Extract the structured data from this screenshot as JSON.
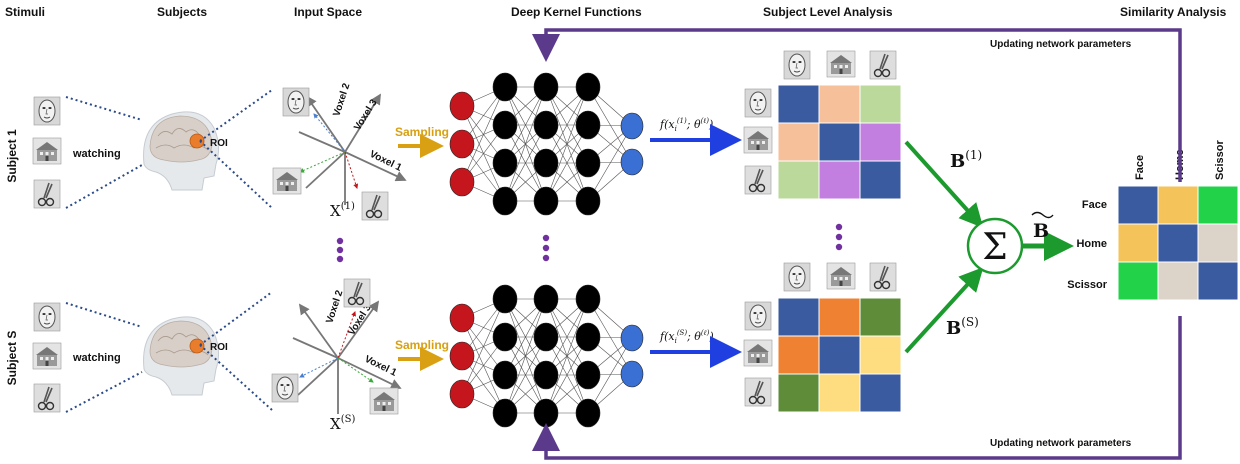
{
  "headers": {
    "stimuli": "Stimuli",
    "subjects": "Subjects",
    "input_space": "Input Space",
    "deep_kernel": "Deep Kernel Functions",
    "subject_level": "Subject Level Analysis",
    "similarity": "Similarity Analysis"
  },
  "rows": {
    "subject1": "Subject 1",
    "subjectS": "Subject S"
  },
  "watching": "watching",
  "roi": "ROI",
  "axes": {
    "voxel1": "Voxel 1",
    "voxel2": "Voxel 2",
    "voxel3": "Voxel 3"
  },
  "sampling": "Sampling",
  "x1": {
    "base": "X",
    "sup": "(1)"
  },
  "xS": {
    "base": "X",
    "sup": "(S)"
  },
  "f1": {
    "prefix": "f(x",
    "sub": "i",
    "sup": "(1)",
    "suffix": "; θ",
    "theta_sup": "(ℓ)",
    "close": ")"
  },
  "fS": {
    "prefix": "f(x",
    "sub": "i",
    "sup": "(S)",
    "suffix": "; θ",
    "theta_sup": "(ℓ)",
    "close": ")"
  },
  "b1": {
    "base": "B",
    "sup": "(1)"
  },
  "bS": {
    "base": "B",
    "sup": "(S)"
  },
  "btilde": "B",
  "sigma": "Σ",
  "updating": "Updating network parameters",
  "similarity_matrix": {
    "columns": [
      "Face",
      "Home",
      "Scissor"
    ],
    "rows": [
      "Face",
      "Home",
      "Scissor"
    ]
  },
  "colors": {
    "purple_arrow": "#5b3a8c",
    "blue_arrow": "#1f3fe0",
    "green_arrow": "#1c9a2e",
    "sampling_arrow": "#d8a012",
    "input_neuron": "#c4161c",
    "hidden_neuron": "#000000",
    "output_neuron": "#3a6fd4",
    "dots": "#7030a0"
  },
  "matrix1": [
    [
      "#3a5ba0",
      "#f5c09a",
      "#bcd99c"
    ],
    [
      "#f5c09a",
      "#3a5ba0",
      "#c27fe0"
    ],
    [
      "#bcd99c",
      "#c27fe0",
      "#3a5ba0"
    ]
  ],
  "matrixS": [
    [
      "#3a5ba0",
      "#ef8133",
      "#5e8c38"
    ],
    [
      "#ef8133",
      "#3a5ba0",
      "#fedd80"
    ],
    [
      "#5e8c38",
      "#fedd80",
      "#3a5ba0"
    ]
  ],
  "matrixB": [
    [
      "#3a5ba0",
      "#f4c35a",
      "#22d34a"
    ],
    [
      "#f4c35a",
      "#3a5ba0",
      "#dcd3c9"
    ],
    [
      "#22d34a",
      "#dcd3c9",
      "#3a5ba0"
    ]
  ]
}
